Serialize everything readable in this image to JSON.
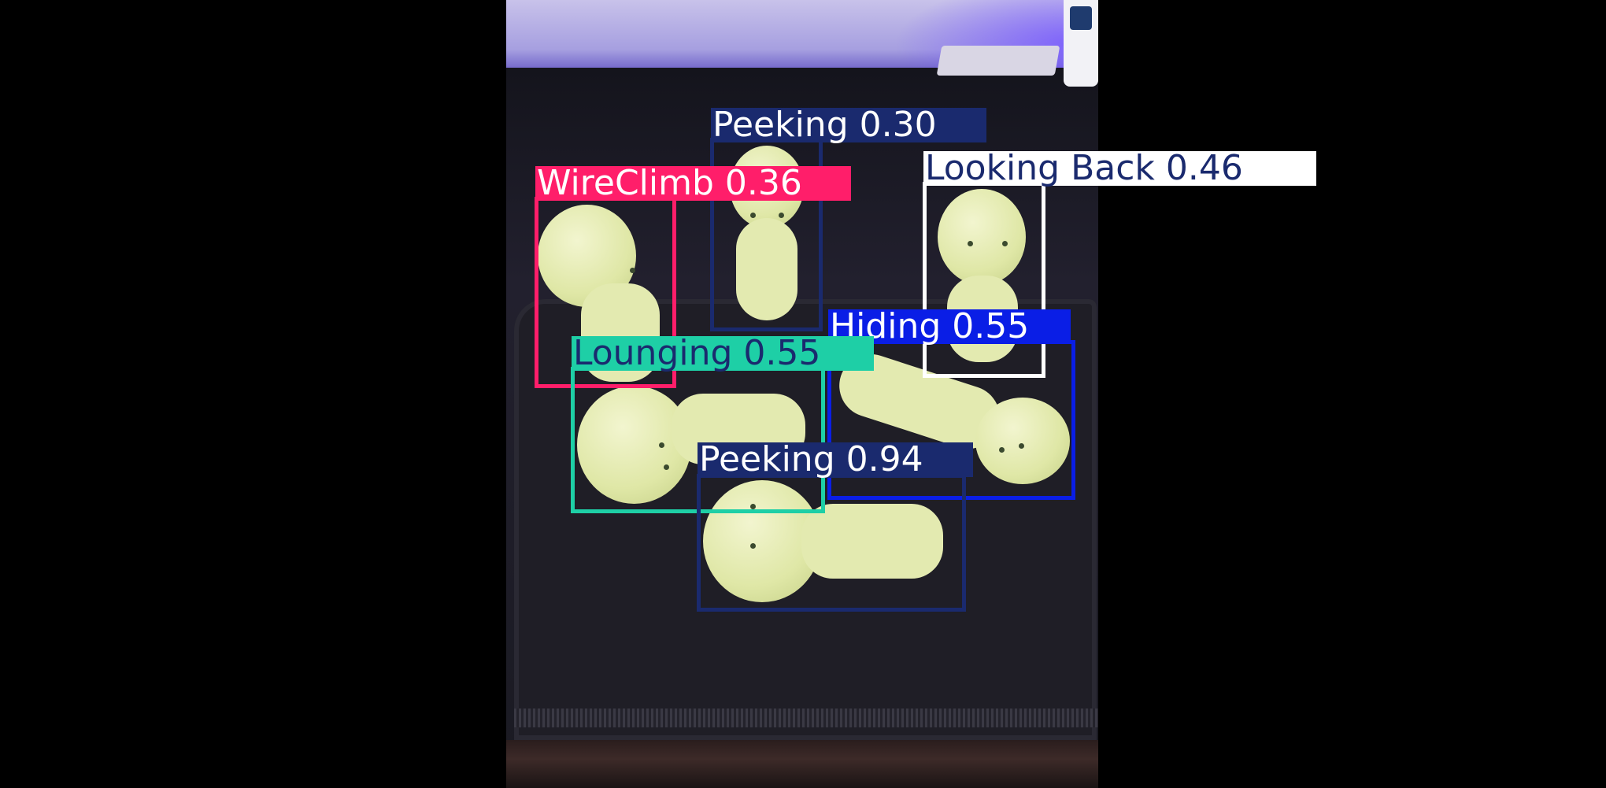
{
  "detections": [
    {
      "label": "Peeking 0.30",
      "color": "#1a2a6e",
      "text_color": "#ffffff"
    },
    {
      "label": "Looking Back 0.46",
      "color": "#ffffff",
      "text_color": "#1a2a6e"
    },
    {
      "label": "WireClimb 0.36",
      "color": "#ff1e6a",
      "text_color": "#ffffff"
    },
    {
      "label": "Hiding 0.55",
      "color": "#0a1ee6",
      "text_color": "#ffffff"
    },
    {
      "label": "Lounging 0.55",
      "color": "#1ecfa6",
      "text_color": "#1a2a6e"
    },
    {
      "label": "Peeking 0.94",
      "color": "#1a2a6e",
      "text_color": "#ffffff"
    }
  ]
}
